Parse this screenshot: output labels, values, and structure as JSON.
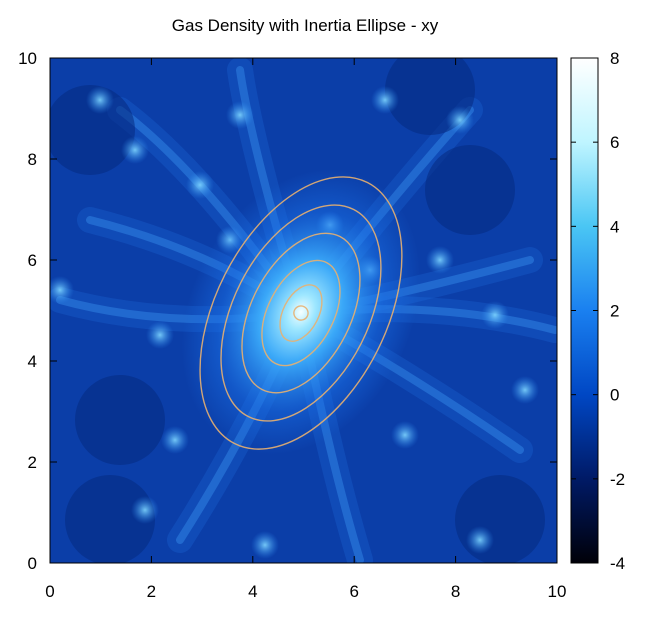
{
  "chart_data": {
    "type": "heatmap",
    "title": "Gas Density with Inertia Ellipse - xy",
    "xlabel": "",
    "ylabel": "",
    "xlim": [
      0,
      10
    ],
    "ylim": [
      0,
      10
    ],
    "x_ticks": [
      "0",
      "2",
      "4",
      "6",
      "8",
      "10"
    ],
    "y_ticks": [
      "0",
      "2",
      "4",
      "6",
      "8",
      "10"
    ],
    "colorbar": {
      "range": [
        -4,
        8
      ],
      "ticks": [
        "-4",
        "-2",
        "0",
        "2",
        "4",
        "6",
        "8"
      ]
    },
    "density_peak": {
      "x": 4.95,
      "y": 4.95,
      "value": 8
    },
    "inertia_ellipse": {
      "center": [
        4.95,
        4.95
      ],
      "angle_deg_from_y_axis": 27,
      "semi_axes": [
        [
          0.14,
          0.14
        ],
        [
          0.35,
          0.6
        ],
        [
          0.65,
          1.12
        ],
        [
          0.98,
          1.7
        ],
        [
          1.33,
          2.3
        ],
        [
          1.68,
          2.9
        ]
      ]
    },
    "colors": {
      "ellipse": "#e8b070",
      "colormap": [
        "#000008",
        "#001a66",
        "#0047c4",
        "#1a80f0",
        "#4ac6f4",
        "#bff5ff",
        "#ffffff"
      ]
    },
    "grid": false,
    "legend": "none"
  }
}
